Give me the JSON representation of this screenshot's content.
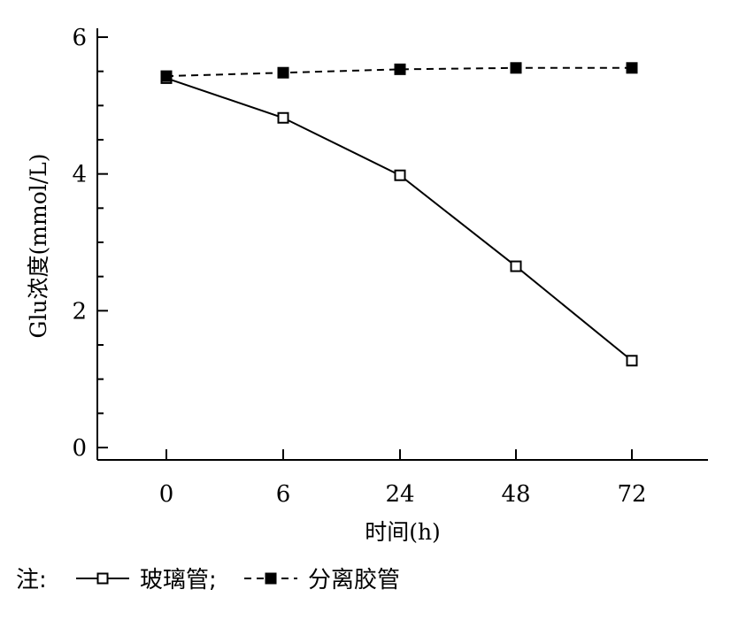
{
  "chart_data": {
    "type": "line",
    "categories": [
      "0",
      "6",
      "24",
      "48",
      "72"
    ],
    "series": [
      {
        "name": "玻璃管",
        "values": [
          5.4,
          4.82,
          3.98,
          2.65,
          1.27
        ],
        "line_style": "solid",
        "marker": "open-square",
        "color": "#000000"
      },
      {
        "name": "分离胶管",
        "values": [
          5.43,
          5.48,
          5.53,
          5.55,
          5.55
        ],
        "line_style": "dashed",
        "marker": "filled-square",
        "color": "#000000"
      }
    ],
    "xlabel": "时间(h)",
    "ylabel": "Glu浓度(mmol/L)",
    "ylim": [
      0,
      6
    ],
    "y_ticks": [
      "0",
      "2",
      "4",
      "6"
    ],
    "grid": false,
    "legend": {
      "placement": "bottom-left",
      "prefix": "注:",
      "separator": ";"
    }
  }
}
